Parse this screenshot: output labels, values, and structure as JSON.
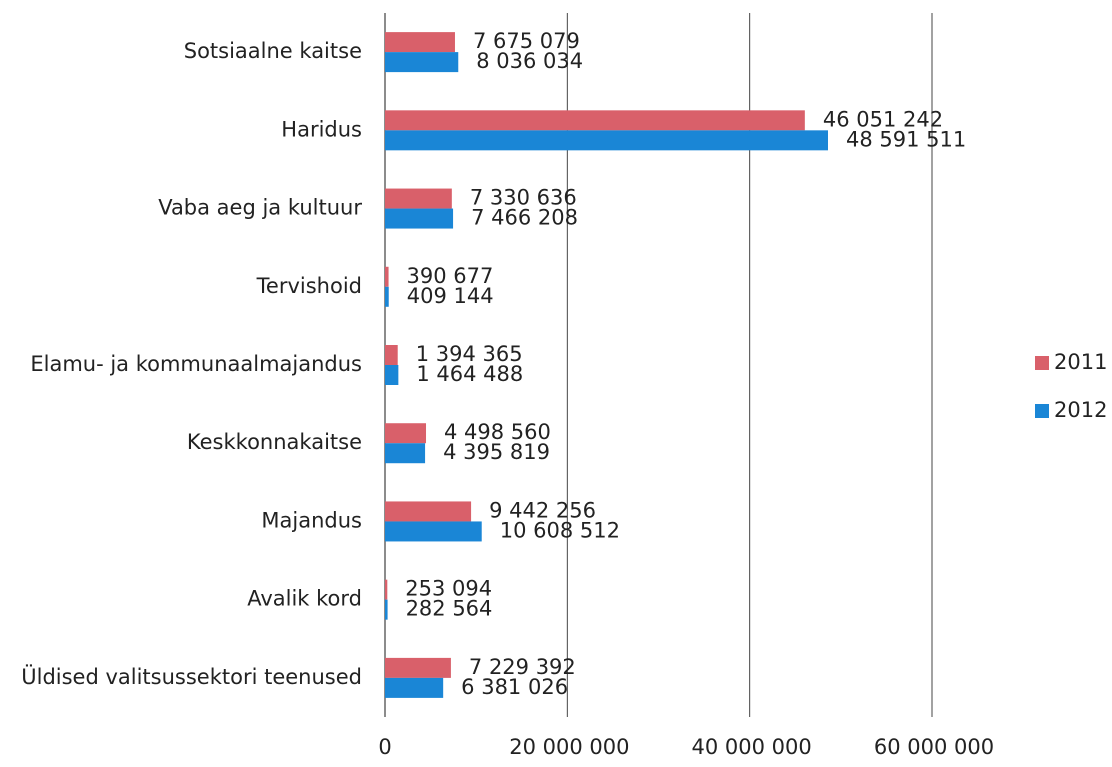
{
  "chart_data": {
    "type": "barh",
    "categories": [
      "Sotsiaalne kaitse",
      "Haridus",
      "Vaba aeg ja kultuur",
      "Tervishoid",
      "Elamu- ja kommunaalmajandus",
      "Keskkonnakaitse",
      "Majandus",
      "Avalik kord",
      "Üldised valitsussektori teenused"
    ],
    "series": [
      {
        "name": "2011",
        "color": "#d9606a",
        "values": [
          7675079,
          46051242,
          7330636,
          390677,
          1394365,
          4498560,
          9442256,
          253094,
          7229392
        ],
        "value_labels": [
          "7 675 079",
          "46 051 242",
          "7 330 636",
          "390 677",
          "1 394 365",
          "4 498 560",
          "9 442 256",
          "253 094",
          "7 229 392"
        ]
      },
      {
        "name": "2012",
        "color": "#1a86d6",
        "values": [
          8036034,
          48591511,
          7466208,
          409144,
          1464488,
          4395819,
          10608512,
          282564,
          6381026
        ],
        "value_labels": [
          "8 036 034",
          "48 591 511",
          "7 466 208",
          "409 144",
          "1 464 488",
          "4 395 819",
          "10 608 512",
          "282 564",
          "6 381 026"
        ]
      }
    ],
    "xlim": [
      0,
      60000000
    ],
    "xticks": [
      0,
      {
        "value": 20000000,
        "label": "20 000 000"
      },
      {
        "value": 40000000,
        "label": "40 000 000"
      },
      {
        "value": 60000000,
        "label": "60 000 000"
      }
    ],
    "grid": true,
    "legend": "right"
  }
}
